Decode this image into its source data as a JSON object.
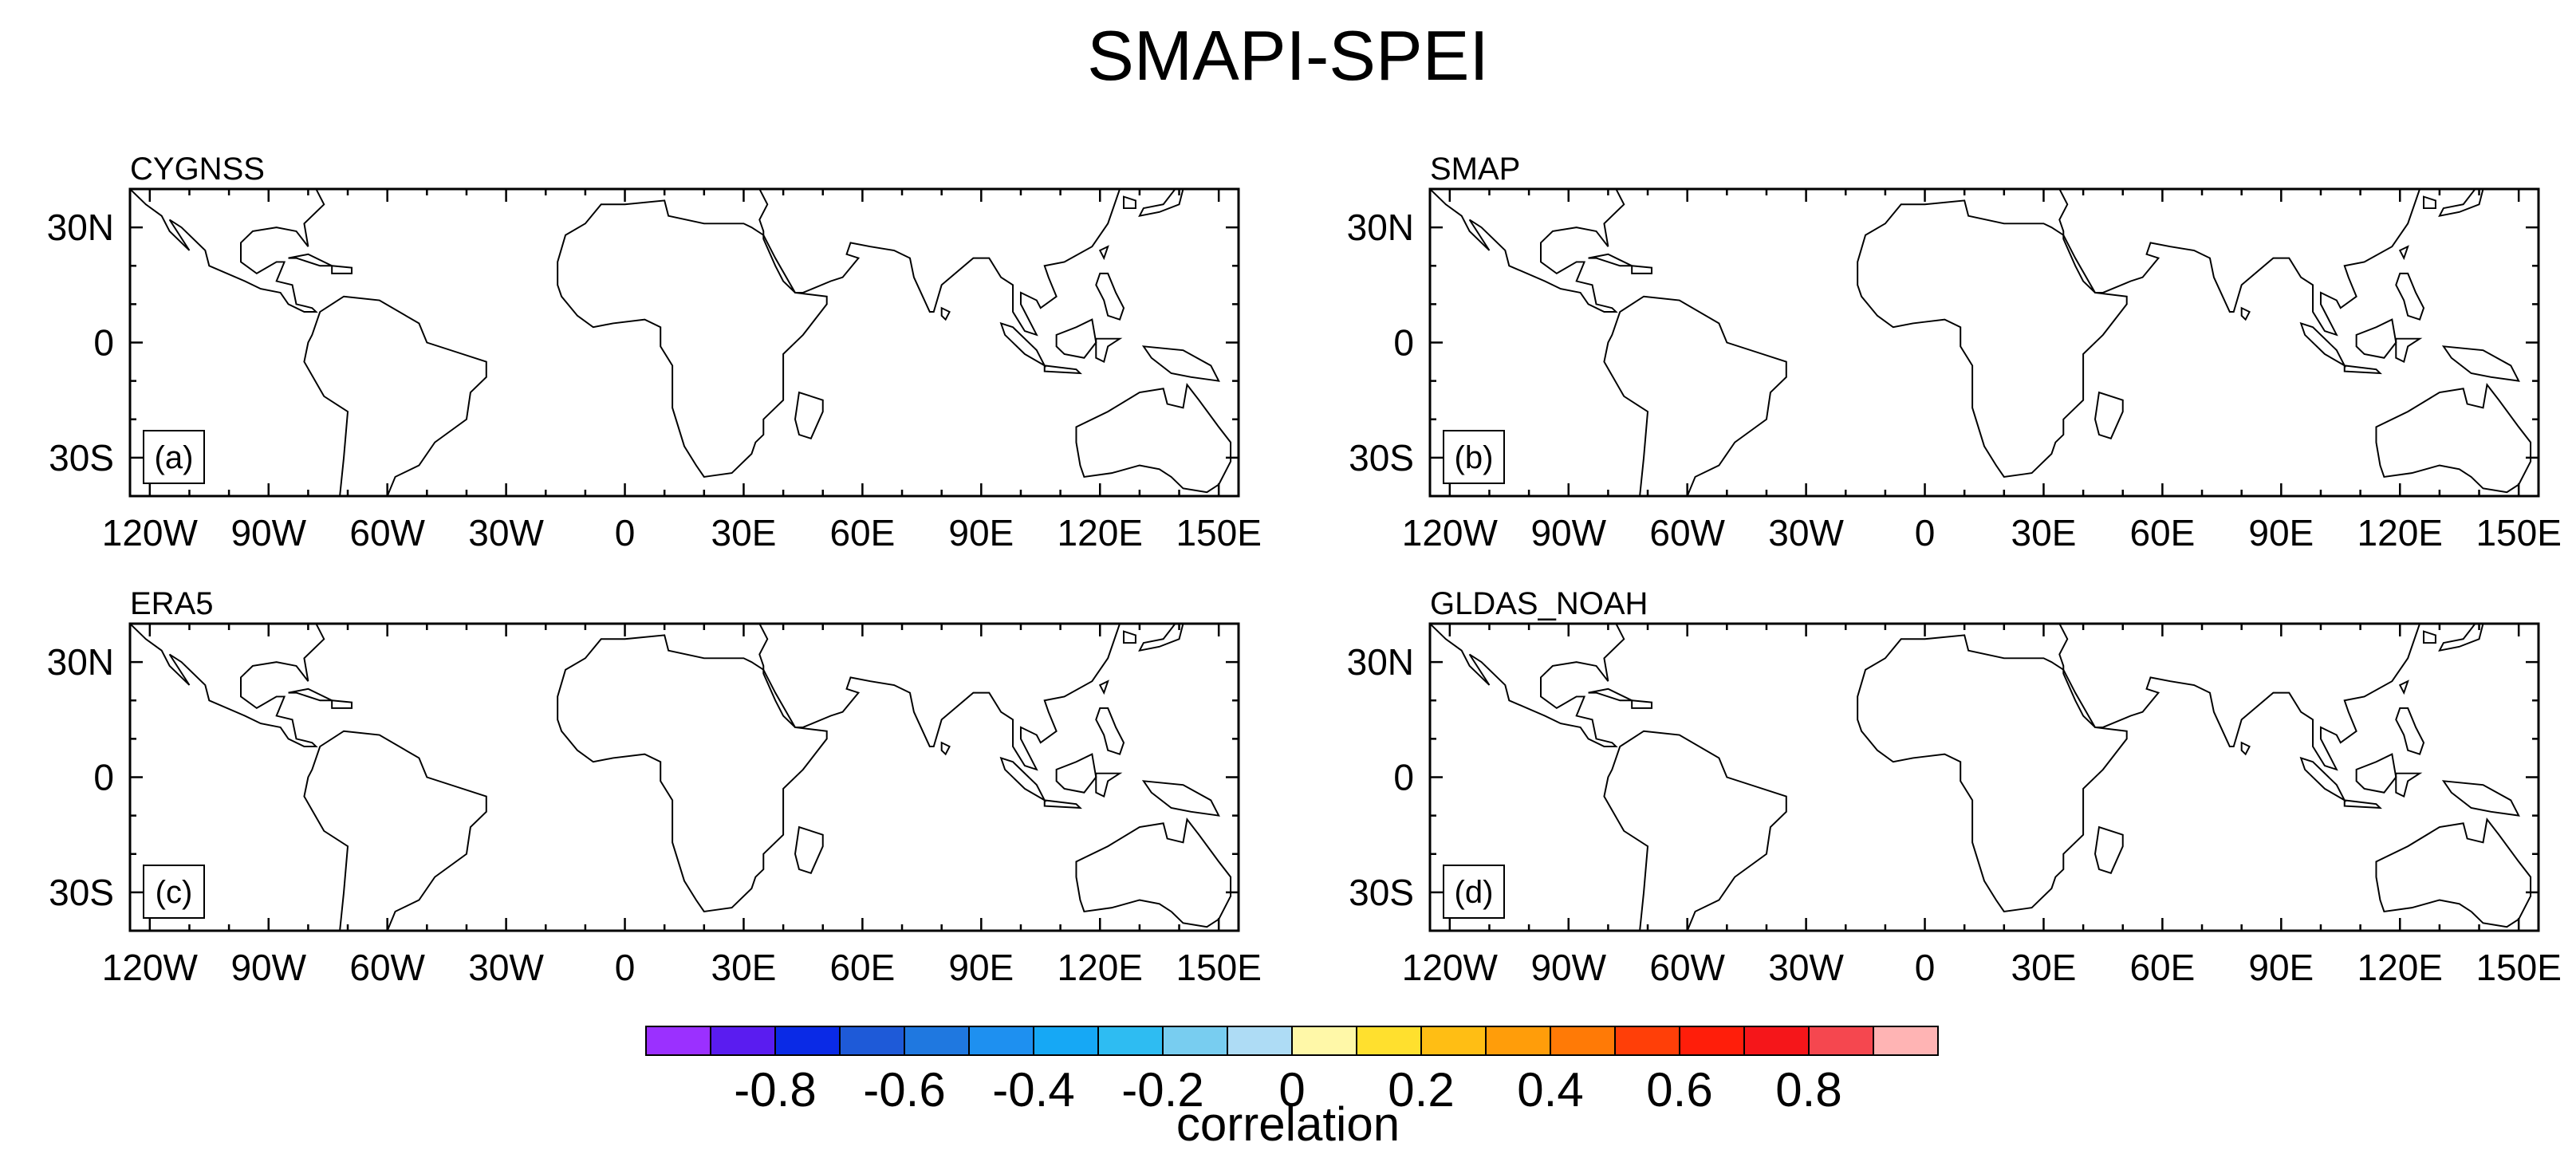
{
  "title": "SMAPI-SPEI",
  "panels": [
    {
      "name": "CYGNSS",
      "letter": "(a)",
      "style": "cygnss"
    },
    {
      "name": "SMAP",
      "letter": "(b)",
      "style": "smap"
    },
    {
      "name": "ERA5",
      "letter": "(c)",
      "style": "era5"
    },
    {
      "name": "GLDAS_NOAH",
      "letter": "(d)",
      "style": "gldas"
    }
  ],
  "axes": {
    "lon_range": [
      -125,
      155
    ],
    "lat_range": [
      -40,
      40
    ],
    "x_ticks": [
      {
        "value": -120,
        "label": "120W"
      },
      {
        "value": -90,
        "label": "90W"
      },
      {
        "value": -60,
        "label": "60W"
      },
      {
        "value": -30,
        "label": "30W"
      },
      {
        "value": 0,
        "label": "0"
      },
      {
        "value": 30,
        "label": "30E"
      },
      {
        "value": 60,
        "label": "60E"
      },
      {
        "value": 90,
        "label": "90E"
      },
      {
        "value": 120,
        "label": "120E"
      },
      {
        "value": 150,
        "label": "150E"
      }
    ],
    "y_ticks": [
      {
        "value": 30,
        "label": "30N"
      },
      {
        "value": 0,
        "label": "0"
      },
      {
        "value": -30,
        "label": "30S"
      }
    ]
  },
  "colorbar": {
    "colors": [
      "#9b30ff",
      "#5a1cf0",
      "#0a2ae6",
      "#1e5ad8",
      "#1f78e0",
      "#1e90f0",
      "#16a8f5",
      "#2ebcf2",
      "#78cdf0",
      "#aedcf5",
      "#fff8a8",
      "#ffe02e",
      "#ffbe14",
      "#ff9d0a",
      "#ff7a06",
      "#ff3f08",
      "#ff1e0a",
      "#f5161a",
      "#f5474f",
      "#ffb4b4"
    ],
    "labels": [
      "-0.8",
      "-0.6",
      "-0.4",
      "-0.2",
      "0",
      "0.2",
      "0.4",
      "0.6",
      "0.8"
    ],
    "title": "correlation"
  },
  "chart_data": {
    "type": "heatmap",
    "title": "SMAPI-SPEI",
    "subplots": [
      "CYGNSS",
      "SMAP",
      "ERA5",
      "GLDAS_NOAH"
    ],
    "variable": "correlation",
    "value_range": [
      -1,
      1
    ],
    "contour_interval": 0.1,
    "lon_range": [
      -125,
      155
    ],
    "lat_range": [
      -40,
      40
    ],
    "missing_data_color": "#a9a9a9"
  }
}
